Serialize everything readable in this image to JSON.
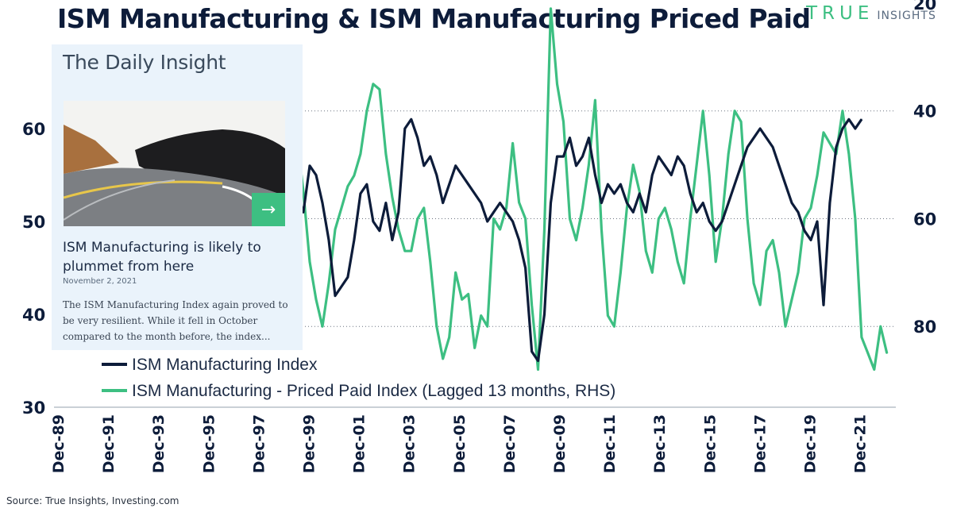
{
  "title": "ISM Manufacturing & ISM Manufacturing Priced Paid",
  "brand": {
    "word": "TRUE",
    "suffix": "INSIGHTS"
  },
  "source": "Source: True Insights, Investing.com",
  "card": {
    "header": "The Daily Insight",
    "arrow": "→",
    "headline": "ISM Manufacturing is likely to plummet from here",
    "date": "November 2, 2021",
    "body": "The ISM Manufacturing Index again proved to be very resilient. While it fell in October compared to the month before, the index..."
  },
  "colors": {
    "navy": "#0d1c3a",
    "green": "#3dbf82",
    "card_bg": "#eaf3fb"
  },
  "chart_data": {
    "type": "line",
    "title": "ISM Manufacturing & ISM Manufacturing Priced Paid",
    "x_ticks": [
      "Dec-89",
      "Dec-91",
      "Dec-93",
      "Dec-95",
      "Dec-97",
      "Dec-99",
      "Dec-01",
      "Dec-03",
      "Dec-05",
      "Dec-07",
      "Dec-09",
      "Dec-11",
      "Dec-13",
      "Dec-15",
      "Dec-17",
      "Dec-19",
      "Dec-21"
    ],
    "xlim": [
      1989.92,
      2023.1
    ],
    "y_left": {
      "ticks": [
        30,
        40,
        50,
        60
      ],
      "lim": [
        30,
        73.5
      ]
    },
    "y_right": {
      "ticks": [
        20,
        40,
        60,
        80
      ],
      "lim": [
        20,
        95
      ],
      "inverted": true
    },
    "gridlines_right": [
      40,
      60,
      80
    ],
    "legend": [
      "ISM Manufacturing Index",
      "ISM Manufacturing - Priced Paid Index (Lagged 13 months, RHS)"
    ],
    "series": [
      {
        "name": "ISM Manufacturing Index",
        "axis": "left",
        "color": "#0d1c3a",
        "x": [
          1999.0,
          1999.25,
          1999.5,
          1999.75,
          2000.0,
          2000.25,
          2000.5,
          2000.75,
          2001.0,
          2001.25,
          2001.5,
          2001.75,
          2002.0,
          2002.25,
          2002.5,
          2002.75,
          2003.0,
          2003.25,
          2003.5,
          2003.75,
          2004.0,
          2004.25,
          2004.5,
          2004.75,
          2005.0,
          2005.25,
          2005.5,
          2005.75,
          2006.0,
          2006.25,
          2006.5,
          2006.75,
          2007.0,
          2007.25,
          2007.5,
          2007.75,
          2008.0,
          2008.25,
          2008.5,
          2008.75,
          2009.0,
          2009.25,
          2009.5,
          2009.75,
          2010.0,
          2010.25,
          2010.5,
          2010.75,
          2011.0,
          2011.25,
          2011.5,
          2011.75,
          2012.0,
          2012.25,
          2012.5,
          2012.75,
          2013.0,
          2013.25,
          2013.5,
          2013.75,
          2014.0,
          2014.25,
          2014.5,
          2014.75,
          2015.0,
          2015.25,
          2015.5,
          2015.75,
          2016.0,
          2016.25,
          2016.5,
          2016.75,
          2017.0,
          2017.25,
          2017.5,
          2017.75,
          2018.0,
          2018.25,
          2018.5,
          2018.75,
          2019.0,
          2019.25,
          2019.5,
          2019.75,
          2020.0,
          2020.25,
          2020.5,
          2020.75,
          2021.0,
          2021.25,
          2021.5,
          2021.75
        ],
        "values": [
          58,
          55,
          53,
          51,
          56,
          55,
          52,
          48,
          42,
          43,
          44,
          48,
          53,
          54,
          50,
          49,
          52,
          48,
          51,
          60,
          61,
          59,
          56,
          57,
          55,
          52,
          54,
          56,
          55,
          54,
          53,
          52,
          50,
          51,
          52,
          51,
          50,
          48,
          45,
          36,
          35,
          40,
          52,
          57,
          57,
          59,
          56,
          57,
          59,
          55,
          52,
          54,
          53,
          54,
          52,
          51,
          53,
          51,
          55,
          57,
          56,
          55,
          57,
          56,
          53,
          51,
          52,
          50,
          49,
          50,
          52,
          54,
          56,
          58,
          59,
          60,
          59,
          58,
          56,
          54,
          52,
          51,
          49,
          48,
          50,
          41,
          52,
          58,
          60,
          61,
          60,
          61
        ]
      },
      {
        "name": "ISM Manufacturing - Priced Paid Index (Lagged 13 months, RHS)",
        "axis": "right",
        "color": "#3dbf82",
        "x": [
          1999.0,
          1999.25,
          1999.5,
          1999.75,
          2000.0,
          2000.25,
          2000.5,
          2000.75,
          2001.0,
          2001.25,
          2001.5,
          2001.75,
          2002.0,
          2002.25,
          2002.5,
          2002.75,
          2003.0,
          2003.25,
          2003.5,
          2003.75,
          2004.0,
          2004.25,
          2004.5,
          2004.75,
          2005.0,
          2005.25,
          2005.5,
          2005.75,
          2006.0,
          2006.25,
          2006.5,
          2006.75,
          2007.0,
          2007.25,
          2007.5,
          2007.75,
          2008.0,
          2008.25,
          2008.5,
          2008.75,
          2009.0,
          2009.25,
          2009.5,
          2009.75,
          2010.0,
          2010.25,
          2010.5,
          2010.75,
          2011.0,
          2011.25,
          2011.5,
          2011.75,
          2012.0,
          2012.25,
          2012.5,
          2012.75,
          2013.0,
          2013.25,
          2013.5,
          2013.75,
          2014.0,
          2014.25,
          2014.5,
          2014.75,
          2015.0,
          2015.25,
          2015.5,
          2015.75,
          2016.0,
          2016.25,
          2016.5,
          2016.75,
          2017.0,
          2017.25,
          2017.5,
          2017.75,
          2018.0,
          2018.25,
          2018.5,
          2018.75,
          2019.0,
          2019.25,
          2019.5,
          2019.75,
          2020.0,
          2020.25,
          2020.5,
          2020.75,
          2021.0,
          2021.25,
          2021.5,
          2021.75,
          2022.0,
          2022.25,
          2022.5,
          2022.75
        ],
        "values": [
          34,
          38,
          45,
          55,
          68,
          75,
          80,
          72,
          62,
          58,
          54,
          52,
          48,
          40,
          35,
          36,
          48,
          56,
          62,
          66,
          66,
          60,
          58,
          68,
          80,
          86,
          82,
          70,
          75,
          74,
          84,
          78,
          80,
          60,
          62,
          58,
          46,
          57,
          60,
          76,
          88,
          62,
          21,
          35,
          42,
          60,
          64,
          58,
          50,
          38,
          62,
          78,
          80,
          70,
          58,
          50,
          55,
          66,
          70,
          60,
          58,
          62,
          68,
          72,
          60,
          50,
          40,
          52,
          68,
          60,
          48,
          40,
          42,
          60,
          72,
          76,
          66,
          64,
          70,
          80,
          75,
          70,
          60,
          58,
          52,
          44,
          46,
          48,
          40,
          48,
          60,
          82,
          85,
          88,
          80,
          85
        ]
      }
    ]
  }
}
